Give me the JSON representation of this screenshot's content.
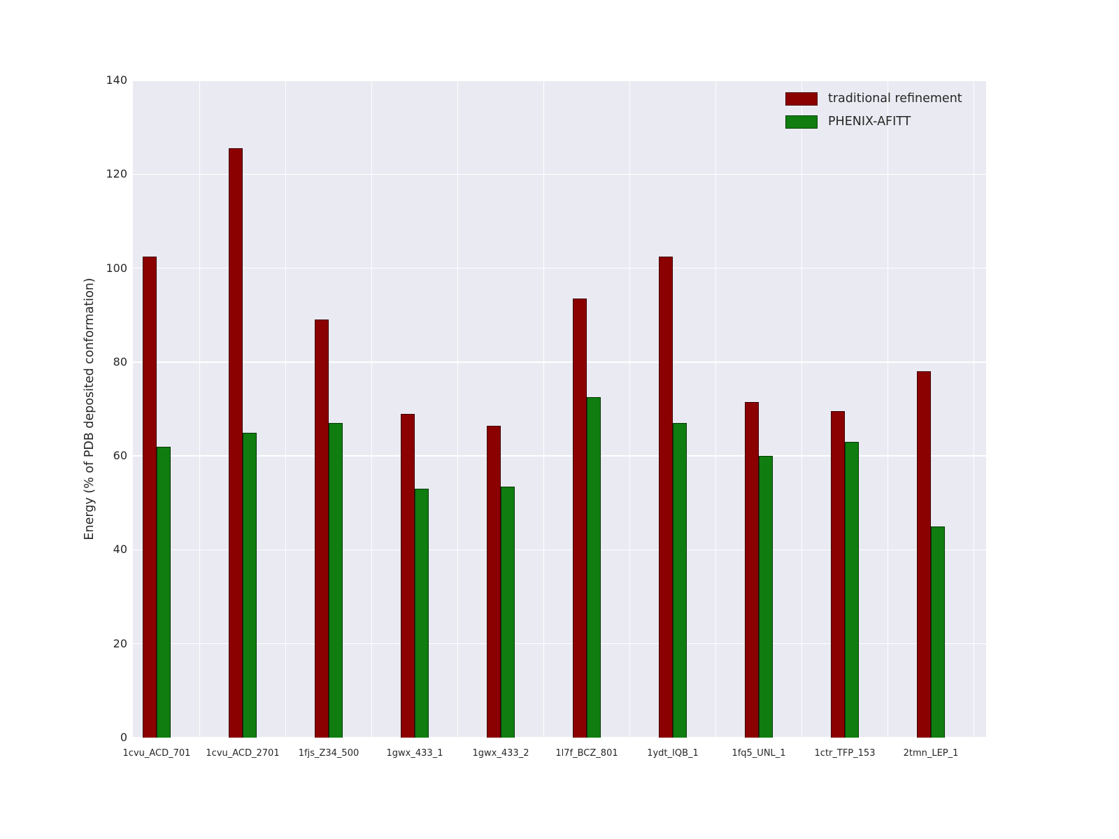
{
  "chart_data": {
    "type": "bar",
    "title": "",
    "xlabel": "",
    "ylabel": "Energy (% of PDB deposited conformation)",
    "ylim": [
      0,
      140
    ],
    "yticks": [
      0,
      20,
      40,
      60,
      80,
      100,
      120,
      140
    ],
    "grid": true,
    "plot_bg": "#eaeaf2",
    "grid_color": "#ffffff",
    "legend_position": "upper right",
    "categories": [
      "1cvu_ACD_701",
      "1cvu_ACD_2701",
      "1fjs_Z34_500",
      "1gwx_433_1",
      "1gwx_433_2",
      "1l7f_BCZ_801",
      "1ydt_IQB_1",
      "1fq5_UNL_1",
      "1ctr_TFP_153",
      "2tmn_LEP_1"
    ],
    "series": [
      {
        "name": "traditional refinement",
        "color": "#8b0000",
        "values": [
          102.5,
          125.5,
          89.0,
          69.0,
          66.5,
          93.5,
          102.5,
          71.5,
          69.5,
          78.0
        ]
      },
      {
        "name": "PHENIX-AFITT",
        "color": "#0f7d0f",
        "values": [
          62.0,
          65.0,
          67.0,
          53.0,
          53.5,
          72.5,
          67.0,
          60.0,
          63.0,
          45.0
        ]
      }
    ]
  }
}
